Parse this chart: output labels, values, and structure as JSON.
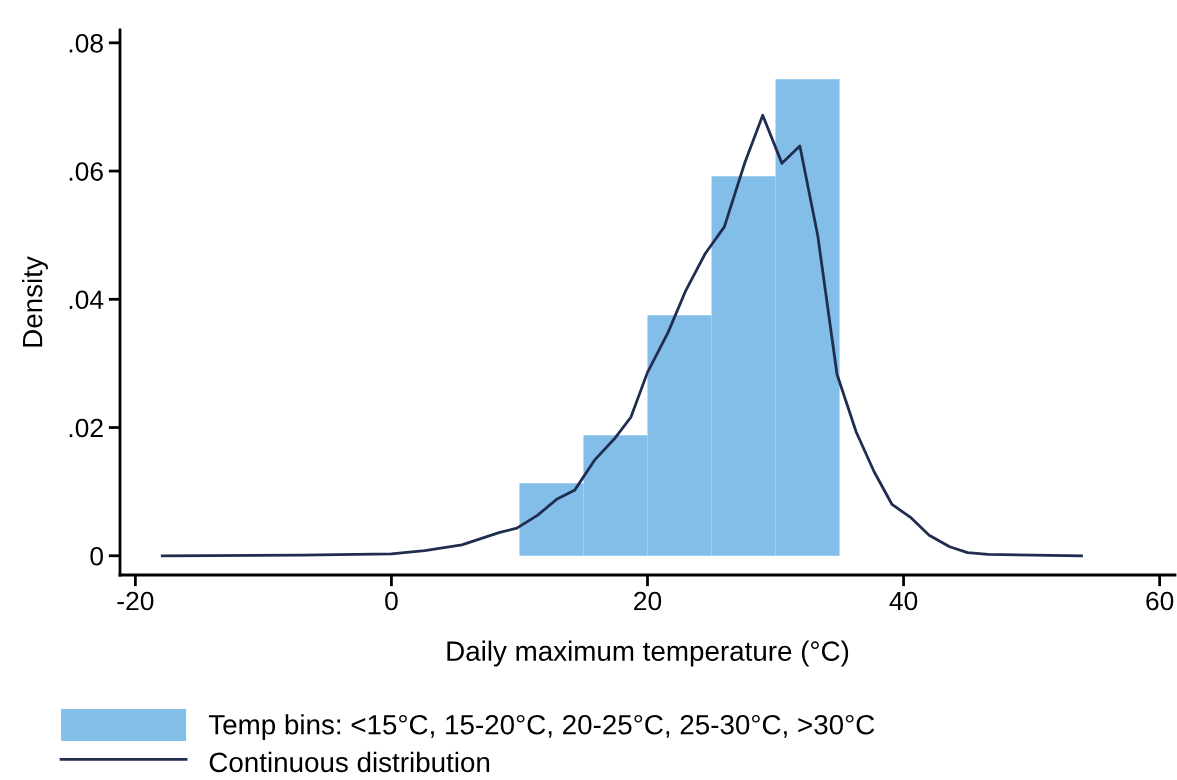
{
  "chart_data": {
    "type": "histogram",
    "xlabel": "Daily maximum temperature (°C)",
    "ylabel": "Density",
    "bins": [
      10,
      15,
      20,
      25,
      30,
      35
    ],
    "series": [
      {
        "type": "histogram",
        "name": "Temp bins: <15°C, 15-20°C, 20-25°C, 25-30°C, >30°C",
        "color": "#83bee8",
        "values": [
          0.0113,
          0.0188,
          0.0375,
          0.0592,
          0.0743
        ]
      },
      {
        "type": "line",
        "name": "Continuous distribution",
        "color": "#1f2d4f",
        "x": [
          -17.9,
          -7,
          0,
          2.6,
          5.5,
          8.4,
          9.8,
          11.4,
          12.9,
          14.3,
          15.9,
          17.4,
          18.7,
          20.0,
          21.6,
          23.0,
          24.5,
          26.0,
          27.6,
          29.0,
          30.5,
          31.9,
          33.3,
          34.8,
          36.3,
          37.7,
          39.1,
          40.6,
          42.0,
          43.6,
          45.0,
          46.6,
          53.9
        ],
        "values": [
          0,
          0.0001,
          0.0003,
          0.0008,
          0.0017,
          0.0036,
          0.0043,
          0.0063,
          0.0088,
          0.0102,
          0.015,
          0.0182,
          0.0216,
          0.0286,
          0.0348,
          0.0414,
          0.0471,
          0.0513,
          0.0613,
          0.0687,
          0.0612,
          0.0639,
          0.0499,
          0.0283,
          0.0193,
          0.0131,
          0.008,
          0.0059,
          0.0032,
          0.0014,
          0.0005,
          0.0002,
          0
        ]
      }
    ],
    "xlim": [
      -21.2,
      61.2
    ],
    "xticks": [
      {
        "value": -20,
        "label": "-20"
      },
      0,
      20,
      40,
      60
    ],
    "ylim": [
      -0.003,
      0.082
    ],
    "yticks": [
      0,
      {
        "value": 0.02,
        "label": ".02"
      },
      {
        "value": 0.04,
        "label": ".04"
      },
      {
        "value": 0.06,
        "label": ".06"
      },
      {
        "value": 0.08,
        "label": ".08"
      }
    ],
    "grid": false,
    "legend": "bottom"
  }
}
